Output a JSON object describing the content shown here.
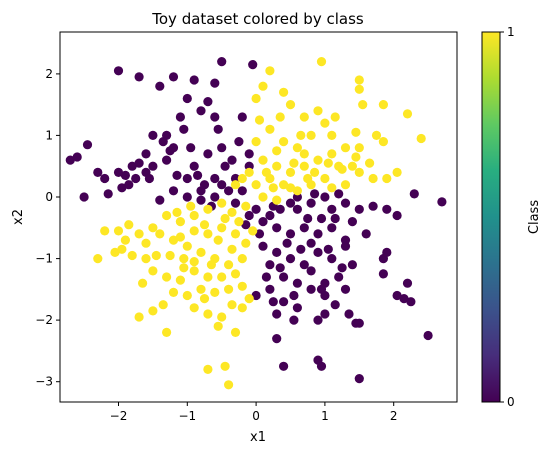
{
  "chart_data": {
    "type": "scatter",
    "title": "Toy dataset colored by class",
    "xlabel": "x1",
    "ylabel": "x2",
    "xlim": [
      -2.85,
      2.92
    ],
    "ylim": [
      -3.33,
      2.68
    ],
    "xticks": [
      -2,
      -1,
      0,
      1,
      2
    ],
    "yticks": [
      -3,
      -2,
      -1,
      0,
      1,
      2
    ],
    "grid": false,
    "colorbar": {
      "label": "Class",
      "ticks": [
        0,
        1
      ],
      "colormap": "viridis"
    },
    "colors": {
      "class0": "#440154",
      "class1": "#fde725"
    },
    "points_class0": [
      [
        -2.0,
        2.05
      ],
      [
        -1.7,
        1.95
      ],
      [
        -1.2,
        1.95
      ],
      [
        -0.9,
        1.9
      ],
      [
        -0.5,
        2.2
      ],
      [
        -0.05,
        2.15
      ],
      [
        -0.6,
        1.85
      ],
      [
        -1.4,
        1.8
      ],
      [
        -1.0,
        1.6
      ],
      [
        -0.7,
        1.55
      ],
      [
        -0.6,
        1.3
      ],
      [
        -0.8,
        1.4
      ],
      [
        -1.1,
        1.3
      ],
      [
        -1.5,
        1.0
      ],
      [
        -1.3,
        1.0
      ],
      [
        -1.05,
        1.1
      ],
      [
        -0.55,
        1.1
      ],
      [
        -0.2,
        1.3
      ],
      [
        -0.25,
        0.9
      ],
      [
        -0.5,
        0.8
      ],
      [
        -0.7,
        0.7
      ],
      [
        -0.9,
        0.5
      ],
      [
        -1.0,
        0.3
      ],
      [
        -1.3,
        0.6
      ],
      [
        -1.6,
        0.7
      ],
      [
        -1.8,
        0.5
      ],
      [
        -2.0,
        0.4
      ],
      [
        -2.2,
        0.3
      ],
      [
        -2.3,
        0.4
      ],
      [
        -2.5,
        0.0
      ],
      [
        -2.7,
        0.6
      ],
      [
        -2.6,
        0.65
      ],
      [
        -2.45,
        0.85
      ],
      [
        -1.95,
        0.15
      ],
      [
        -1.85,
        0.2
      ],
      [
        -1.75,
        0.3
      ],
      [
        -1.6,
        0.4
      ],
      [
        -1.5,
        0.5
      ],
      [
        -1.2,
        0.1
      ],
      [
        -1.0,
        0.0
      ],
      [
        -0.8,
        0.1
      ],
      [
        -0.6,
        0.0
      ],
      [
        -0.4,
        0.1
      ],
      [
        -0.3,
        0.3
      ],
      [
        -0.1,
        0.5
      ],
      [
        -0.1,
        0.7
      ],
      [
        -0.35,
        0.6
      ],
      [
        -0.45,
        0.5
      ],
      [
        -0.6,
        0.3
      ],
      [
        -0.75,
        0.2
      ],
      [
        -0.85,
        0.35
      ],
      [
        -1.15,
        0.35
      ],
      [
        -1.25,
        0.75
      ],
      [
        -1.35,
        0.9
      ],
      [
        -1.55,
        0.3
      ],
      [
        -1.7,
        0.55
      ],
      [
        -2.15,
        0.05
      ],
      [
        -1.4,
        -0.05
      ],
      [
        0.0,
        -0.2
      ],
      [
        0.2,
        -0.3
      ],
      [
        0.35,
        -0.2
      ],
      [
        0.5,
        -0.1
      ],
      [
        0.6,
        0.0
      ],
      [
        0.8,
        -0.1
      ],
      [
        1.0,
        0.0
      ],
      [
        1.1,
        -0.2
      ],
      [
        1.3,
        -0.1
      ],
      [
        1.5,
        -0.2
      ],
      [
        1.7,
        -0.15
      ],
      [
        1.9,
        -0.2
      ],
      [
        2.05,
        -0.3
      ],
      [
        2.3,
        0.05
      ],
      [
        2.7,
        -0.08
      ],
      [
        0.3,
        -0.5
      ],
      [
        0.5,
        -0.6
      ],
      [
        0.7,
        -0.5
      ],
      [
        0.9,
        -0.6
      ],
      [
        1.1,
        -0.5
      ],
      [
        1.3,
        -0.7
      ],
      [
        0.1,
        -0.8
      ],
      [
        0.3,
        -0.9
      ],
      [
        0.5,
        -1.0
      ],
      [
        0.7,
        -1.1
      ],
      [
        0.9,
        -0.9
      ],
      [
        1.1,
        -1.0
      ],
      [
        1.3,
        -0.8
      ],
      [
        1.4,
        -1.1
      ],
      [
        0.2,
        -1.1
      ],
      [
        0.4,
        -1.3
      ],
      [
        0.6,
        -1.4
      ],
      [
        0.8,
        -1.2
      ],
      [
        1.0,
        -1.4
      ],
      [
        1.2,
        -1.3
      ],
      [
        0.2,
        -1.5
      ],
      [
        0.4,
        -1.7
      ],
      [
        0.6,
        -1.8
      ],
      [
        0.8,
        -1.5
      ],
      [
        1.0,
        -1.6
      ],
      [
        1.3,
        -1.5
      ],
      [
        0.0,
        -1.6
      ],
      [
        0.3,
        -1.9
      ],
      [
        0.55,
        -2.0
      ],
      [
        0.9,
        -2.0
      ],
      [
        1.0,
        -1.9
      ],
      [
        1.35,
        -1.9
      ],
      [
        1.45,
        -2.05
      ],
      [
        1.5,
        -2.05
      ],
      [
        2.15,
        -1.65
      ],
      [
        2.2,
        -1.4
      ],
      [
        2.25,
        -1.7
      ],
      [
        2.05,
        -1.6
      ],
      [
        1.85,
        -1.0
      ],
      [
        1.85,
        -1.25
      ],
      [
        1.9,
        -0.9
      ],
      [
        0.95,
        -1.5
      ],
      [
        2.5,
        -2.25
      ],
      [
        0.3,
        -2.3
      ],
      [
        0.9,
        -2.65
      ],
      [
        0.95,
        -2.75
      ],
      [
        0.4,
        -2.75
      ],
      [
        1.5,
        -2.95
      ],
      [
        -0.8,
        -0.05
      ],
      [
        -0.65,
        -0.15
      ],
      [
        -0.5,
        0.2
      ],
      [
        -0.3,
        -0.1
      ],
      [
        -0.2,
        0.1
      ],
      [
        -0.1,
        -0.3
      ],
      [
        0.1,
        -0.4
      ],
      [
        0.05,
        -0.6
      ],
      [
        -0.15,
        -0.45
      ],
      [
        0.15,
        -1.3
      ],
      [
        0.35,
        -1.15
      ],
      [
        0.45,
        -0.75
      ],
      [
        0.65,
        -0.85
      ],
      [
        0.8,
        -0.75
      ],
      [
        1.05,
        -0.85
      ],
      [
        1.25,
        -1.15
      ],
      [
        0.75,
        -0.35
      ],
      [
        0.95,
        -0.35
      ],
      [
        1.15,
        -0.35
      ],
      [
        1.2,
        0.05
      ],
      [
        0.85,
        0.05
      ],
      [
        0.6,
        -0.2
      ],
      [
        1.4,
        -0.4
      ],
      [
        0.25,
        -0.15
      ],
      [
        1.6,
        -0.6
      ],
      [
        0.55,
        -1.6
      ],
      [
        1.15,
        -1.75
      ],
      [
        0.25,
        -1.7
      ],
      [
        -1.9,
        0.35
      ],
      [
        -0.95,
        0.8
      ],
      [
        -1.2,
        0.8
      ]
    ],
    "points_class1": [
      [
        0.2,
        2.05
      ],
      [
        0.1,
        1.8
      ],
      [
        0.0,
        1.6
      ],
      [
        0.4,
        1.7
      ],
      [
        0.95,
        2.2
      ],
      [
        1.5,
        1.9
      ],
      [
        1.5,
        1.75
      ],
      [
        1.55,
        1.5
      ],
      [
        1.85,
        1.5
      ],
      [
        2.2,
        1.35
      ],
      [
        2.4,
        0.95
      ],
      [
        0.5,
        1.5
      ],
      [
        0.7,
        1.3
      ],
      [
        0.9,
        1.4
      ],
      [
        1.0,
        1.2
      ],
      [
        1.1,
        1.0
      ],
      [
        0.8,
        1.0
      ],
      [
        0.6,
        0.8
      ],
      [
        0.4,
        0.9
      ],
      [
        0.2,
        1.1
      ],
      [
        0.0,
        0.9
      ],
      [
        0.1,
        0.6
      ],
      [
        0.3,
        0.5
      ],
      [
        0.5,
        0.4
      ],
      [
        0.7,
        0.5
      ],
      [
        0.9,
        0.6
      ],
      [
        1.1,
        0.7
      ],
      [
        1.3,
        0.8
      ],
      [
        1.5,
        0.8
      ],
      [
        1.75,
        1.0
      ],
      [
        1.85,
        0.9
      ],
      [
        1.4,
        0.5
      ],
      [
        1.5,
        0.4
      ],
      [
        1.7,
        0.3
      ],
      [
        1.9,
        0.3
      ],
      [
        2.05,
        0.4
      ],
      [
        1.2,
        0.5
      ],
      [
        1.0,
        0.3
      ],
      [
        0.8,
        0.2
      ],
      [
        0.6,
        0.1
      ],
      [
        0.4,
        0.2
      ],
      [
        0.2,
        0.3
      ],
      [
        0.0,
        0.2
      ],
      [
        -0.2,
        0.3
      ],
      [
        -0.1,
        0.4
      ],
      [
        0.1,
        0.0
      ],
      [
        0.3,
        -0.05
      ],
      [
        0.5,
        0.15
      ],
      [
        1.3,
        0.2
      ],
      [
        1.25,
        0.45
      ],
      [
        -0.5,
        -0.1
      ],
      [
        -0.7,
        -0.2
      ],
      [
        -0.9,
        -0.3
      ],
      [
        -1.1,
        -0.4
      ],
      [
        -1.3,
        -0.3
      ],
      [
        -1.5,
        -0.5
      ],
      [
        -1.7,
        -0.6
      ],
      [
        -1.9,
        -0.7
      ],
      [
        -2.0,
        -0.55
      ],
      [
        -2.05,
        -0.9
      ],
      [
        -1.85,
        -0.45
      ],
      [
        -1.6,
        -0.75
      ],
      [
        -1.4,
        -0.6
      ],
      [
        -1.2,
        -0.7
      ],
      [
        -1.0,
        -0.8
      ],
      [
        -0.8,
        -0.9
      ],
      [
        -0.6,
        -1.0
      ],
      [
        -0.4,
        -1.1
      ],
      [
        -0.2,
        -1.0
      ],
      [
        -0.3,
        -0.6
      ],
      [
        -0.5,
        -0.5
      ],
      [
        -0.7,
        -0.6
      ],
      [
        -0.9,
        -0.55
      ],
      [
        -1.1,
        -0.65
      ],
      [
        -1.25,
        -0.95
      ],
      [
        -1.45,
        -0.95
      ],
      [
        -1.6,
        -1.0
      ],
      [
        -1.8,
        -0.95
      ],
      [
        -1.95,
        -0.85
      ],
      [
        -2.3,
        -1.0
      ],
      [
        -1.5,
        -1.2
      ],
      [
        -1.3,
        -1.3
      ],
      [
        -1.1,
        -1.35
      ],
      [
        -0.9,
        -1.2
      ],
      [
        -0.7,
        -1.3
      ],
      [
        -0.5,
        -1.3
      ],
      [
        -0.3,
        -1.25
      ],
      [
        -0.2,
        -1.45
      ],
      [
        -0.4,
        -1.5
      ],
      [
        -0.6,
        -1.55
      ],
      [
        -0.8,
        -1.5
      ],
      [
        -1.0,
        -1.6
      ],
      [
        -1.2,
        -1.55
      ],
      [
        -1.35,
        -1.75
      ],
      [
        -1.5,
        -1.85
      ],
      [
        -1.7,
        -1.95
      ],
      [
        -0.9,
        -1.8
      ],
      [
        -0.7,
        -1.9
      ],
      [
        -0.5,
        -1.95
      ],
      [
        -0.35,
        -1.75
      ],
      [
        -0.1,
        -1.65
      ],
      [
        -0.3,
        -2.2
      ],
      [
        -0.55,
        -2.1
      ],
      [
        -1.3,
        -2.2
      ],
      [
        -0.45,
        -2.75
      ],
      [
        -0.7,
        -2.8
      ],
      [
        -0.4,
        -3.05
      ],
      [
        -2.2,
        -0.55
      ],
      [
        -0.05,
        -0.55
      ],
      [
        -0.15,
        -0.75
      ],
      [
        -0.35,
        -0.85
      ],
      [
        -0.55,
        -0.7
      ],
      [
        -0.75,
        -0.45
      ],
      [
        -0.95,
        -0.15
      ],
      [
        -0.35,
        -0.25
      ],
      [
        -0.15,
        -0.15
      ],
      [
        -1.05,
        -1.0
      ],
      [
        -0.65,
        -1.1
      ],
      [
        -0.25,
        -0.4
      ],
      [
        0.3,
        0.75
      ],
      [
        0.7,
        0.7
      ],
      [
        1.05,
        0.55
      ],
      [
        0.15,
        0.4
      ],
      [
        0.55,
        0.55
      ],
      [
        1.45,
        0.65
      ],
      [
        0.85,
        0.4
      ],
      [
        1.65,
        0.55
      ],
      [
        0.35,
        1.3
      ],
      [
        0.65,
        1.0
      ],
      [
        1.15,
        1.3
      ],
      [
        1.45,
        1.05
      ],
      [
        0.05,
        1.25
      ],
      [
        0.25,
        0.15
      ],
      [
        0.75,
        0.3
      ],
      [
        1.1,
        0.15
      ],
      [
        -0.3,
        0.2
      ],
      [
        -0.9,
        -1.05
      ],
      [
        -0.2,
        -1.8
      ],
      [
        -0.75,
        -1.65
      ],
      [
        -1.05,
        -1.15
      ],
      [
        -1.65,
        -1.4
      ],
      [
        -1.15,
        -0.25
      ],
      [
        -0.45,
        -0.35
      ]
    ]
  }
}
